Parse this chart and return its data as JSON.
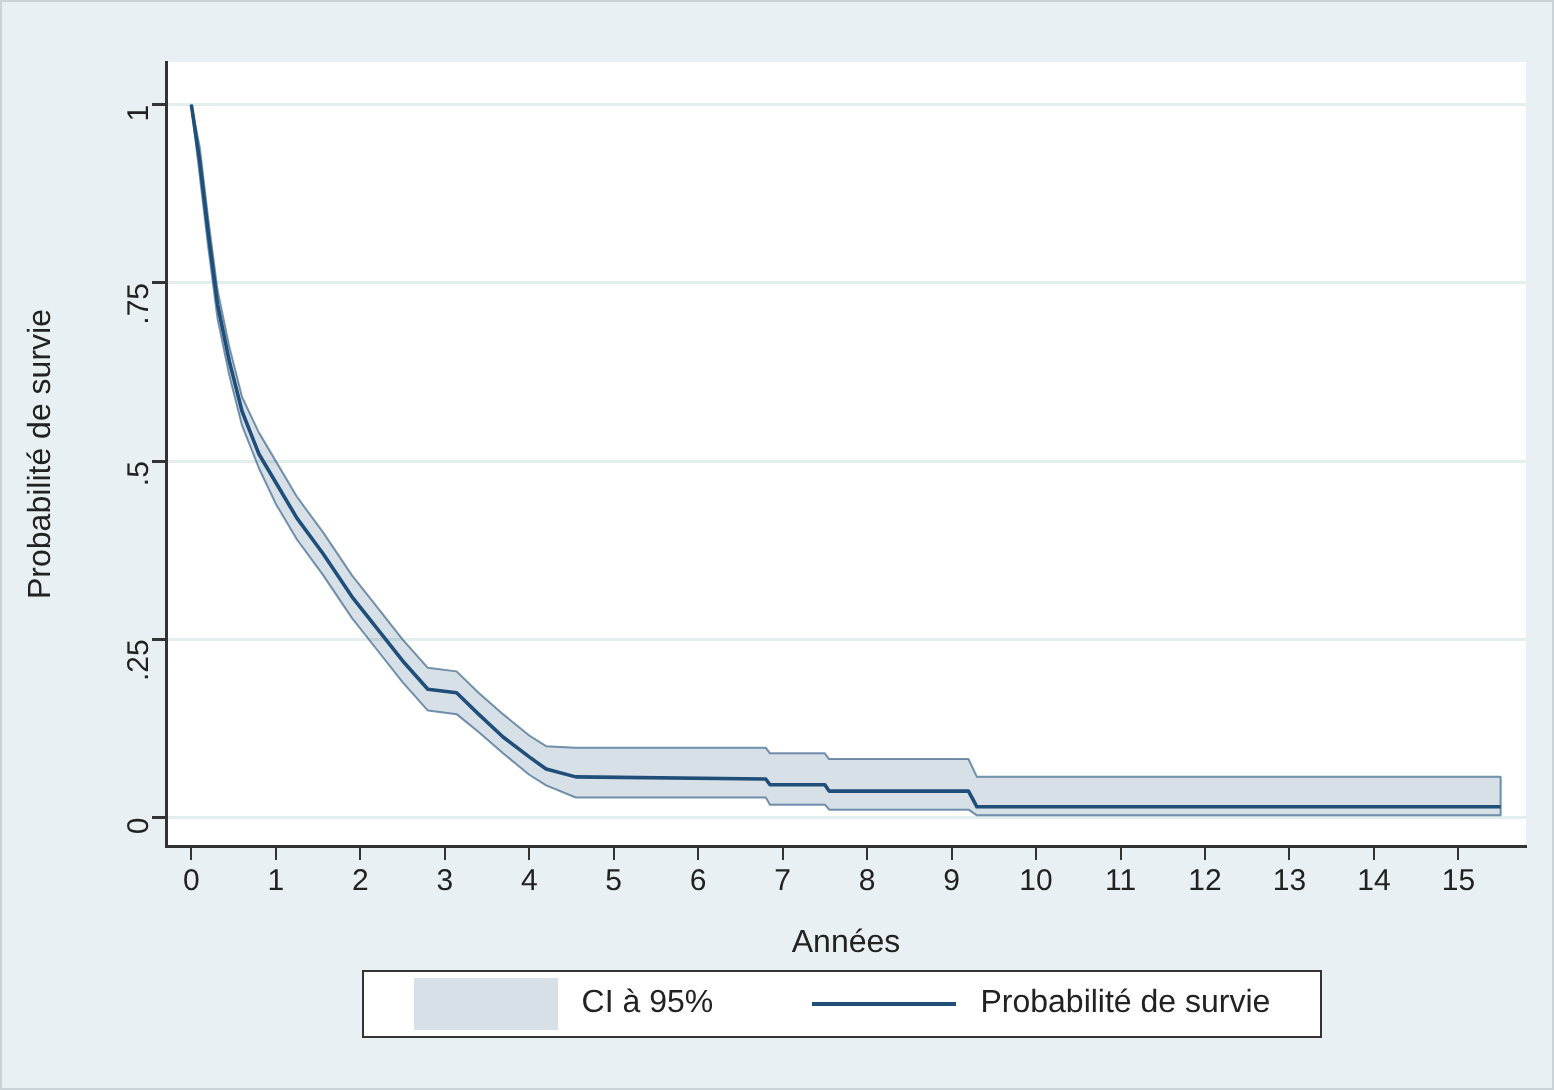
{
  "chart_data": {
    "type": "line",
    "xlabel": "Années",
    "ylabel": "Probabilité de survie",
    "xlim": [
      -0.3,
      15.8
    ],
    "ylim": [
      -0.04,
      1.06
    ],
    "xticks": [
      0,
      1,
      2,
      3,
      4,
      5,
      6,
      7,
      8,
      9,
      10,
      11,
      12,
      13,
      14,
      15
    ],
    "yticks": [
      {
        "value": 0,
        "label": "0"
      },
      {
        "value": 0.25,
        "label": ".25"
      },
      {
        "value": 0.5,
        "label": ".5"
      },
      {
        "value": 0.75,
        "label": ".75"
      },
      {
        "value": 1,
        "label": "1"
      }
    ],
    "grid": "y",
    "legend": "bottom",
    "marker": "none",
    "line_style": "solid",
    "annotations": [
      "CI à 95%"
    ],
    "x": [
      0,
      0.1,
      0.2,
      0.31,
      0.45,
      0.6,
      0.8,
      1,
      1.25,
      1.56,
      1.9,
      2.2,
      2.5,
      2.8,
      3.14,
      3.4,
      3.69,
      4.0,
      4.2,
      4.55,
      6.8,
      6.85,
      7.5,
      7.55,
      9.2,
      9.3,
      15.5
    ],
    "series": [
      {
        "name": "Probabilité de survie",
        "color": "#1f4e79",
        "values": [
          1,
          0.92,
          0.82,
          0.72,
          0.64,
          0.57,
          0.51,
          0.47,
          0.42,
          0.37,
          0.31,
          0.265,
          0.22,
          0.18,
          0.175,
          0.145,
          0.113,
          0.085,
          0.068,
          0.057,
          0.054,
          0.046,
          0.046,
          0.037,
          0.037,
          0.015,
          0.015
        ],
        "lower": [
          1,
          0.9,
          0.8,
          0.7,
          0.62,
          0.55,
          0.49,
          0.44,
          0.39,
          0.34,
          0.28,
          0.235,
          0.19,
          0.15,
          0.145,
          0.12,
          0.09,
          0.06,
          0.045,
          0.028,
          0.028,
          0.018,
          0.018,
          0.011,
          0.011,
          0.003,
          0.003
        ],
        "upper": [
          1,
          0.94,
          0.84,
          0.74,
          0.66,
          0.59,
          0.54,
          0.5,
          0.45,
          0.4,
          0.34,
          0.295,
          0.25,
          0.21,
          0.205,
          0.175,
          0.145,
          0.115,
          0.1,
          0.098,
          0.098,
          0.09,
          0.09,
          0.082,
          0.082,
          0.057,
          0.057
        ]
      }
    ]
  }
}
